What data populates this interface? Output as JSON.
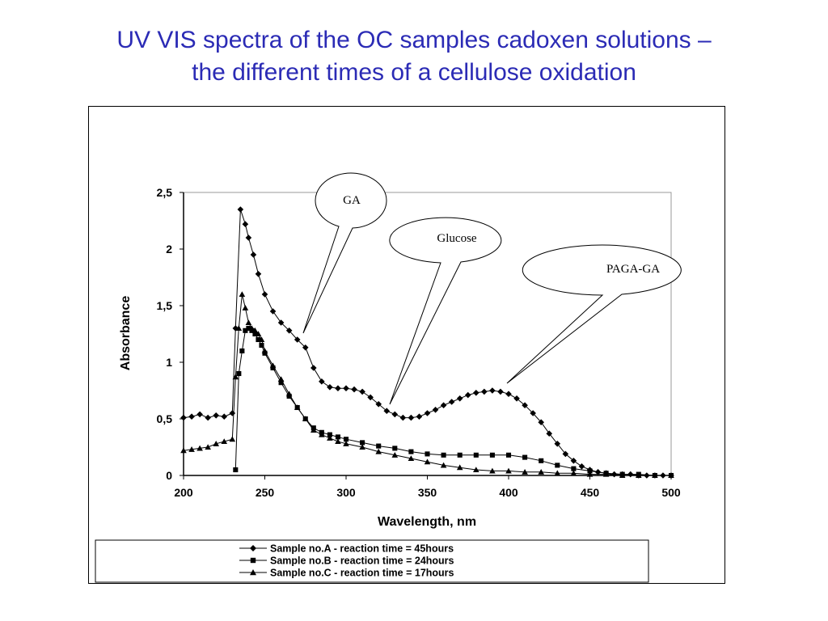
{
  "slide": {
    "title_line1": "UV VIS spectra of the OC samples cadoxen solutions –",
    "title_line2": "the different times of a cellulose oxidation"
  },
  "colors": {
    "title": "#2b2bb5",
    "series": "#000000",
    "plot_border": "#999999"
  },
  "chart_data": {
    "type": "line",
    "title": "",
    "xlabel": "Wavelength, nm",
    "ylabel": "Absorbance",
    "xlim": [
      200,
      500
    ],
    "ylim": [
      0,
      2.5
    ],
    "x_ticks": [
      "200",
      "250",
      "300",
      "350",
      "400",
      "450",
      "500"
    ],
    "y_ticks": [
      "0",
      "0,5",
      "1",
      "1,5",
      "2",
      "2,5"
    ],
    "grid": false,
    "legend_position": "bottom",
    "series": [
      {
        "name": "Sample no.A - reaction time = 45hours",
        "marker": "diamond",
        "x": [
          200,
          205,
          210,
          215,
          220,
          225,
          230,
          232,
          235,
          238,
          240,
          243,
          246,
          250,
          255,
          260,
          265,
          270,
          275,
          280,
          285,
          290,
          295,
          300,
          305,
          310,
          315,
          320,
          325,
          330,
          335,
          340,
          345,
          350,
          355,
          360,
          365,
          370,
          375,
          380,
          385,
          390,
          395,
          400,
          405,
          410,
          415,
          420,
          425,
          430,
          435,
          440,
          445,
          450,
          455,
          460,
          465,
          470,
          475,
          480,
          485,
          490,
          495,
          500
        ],
        "y": [
          0.51,
          0.52,
          0.54,
          0.51,
          0.53,
          0.52,
          0.55,
          1.3,
          2.35,
          2.22,
          2.1,
          1.95,
          1.78,
          1.6,
          1.45,
          1.35,
          1.28,
          1.2,
          1.13,
          0.95,
          0.83,
          0.78,
          0.77,
          0.77,
          0.76,
          0.74,
          0.69,
          0.63,
          0.57,
          0.54,
          0.51,
          0.51,
          0.52,
          0.55,
          0.58,
          0.62,
          0.65,
          0.68,
          0.71,
          0.73,
          0.74,
          0.75,
          0.74,
          0.72,
          0.68,
          0.62,
          0.55,
          0.47,
          0.37,
          0.28,
          0.19,
          0.13,
          0.08,
          0.05,
          0.03,
          0.02,
          0.01,
          0.01,
          0.01,
          0.0,
          0.0,
          0.0,
          0.0,
          0.0
        ]
      },
      {
        "name": "Sample no.B - reaction time = 24hours",
        "marker": "square",
        "x": [
          232,
          234,
          236,
          238,
          240,
          242,
          244,
          246,
          248,
          250,
          255,
          260,
          265,
          270,
          275,
          280,
          285,
          290,
          295,
          300,
          310,
          320,
          330,
          340,
          350,
          360,
          370,
          380,
          390,
          400,
          410,
          420,
          430,
          440,
          450,
          460,
          470,
          480,
          490,
          500
        ],
        "y": [
          0.05,
          0.9,
          1.1,
          1.28,
          1.3,
          1.28,
          1.25,
          1.2,
          1.15,
          1.08,
          0.95,
          0.82,
          0.7,
          0.6,
          0.5,
          0.42,
          0.38,
          0.36,
          0.34,
          0.32,
          0.29,
          0.26,
          0.24,
          0.21,
          0.19,
          0.18,
          0.18,
          0.18,
          0.18,
          0.18,
          0.16,
          0.13,
          0.09,
          0.06,
          0.04,
          0.02,
          0.01,
          0.01,
          0.0,
          0.0
        ]
      },
      {
        "name": "Sample no.C - reaction time = 17hours",
        "marker": "triangle",
        "x": [
          200,
          205,
          210,
          215,
          220,
          225,
          230,
          232,
          234,
          236,
          238,
          240,
          242,
          244,
          246,
          248,
          250,
          255,
          260,
          265,
          270,
          275,
          280,
          285,
          290,
          295,
          300,
          310,
          320,
          330,
          340,
          350,
          360,
          370,
          380,
          390,
          400,
          410,
          420,
          430,
          440,
          450,
          460,
          470,
          480,
          490,
          500
        ],
        "y": [
          0.22,
          0.23,
          0.24,
          0.25,
          0.28,
          0.3,
          0.32,
          0.87,
          1.3,
          1.6,
          1.48,
          1.35,
          1.3,
          1.28,
          1.25,
          1.2,
          1.1,
          0.97,
          0.85,
          0.72,
          0.6,
          0.5,
          0.4,
          0.36,
          0.33,
          0.3,
          0.28,
          0.25,
          0.21,
          0.18,
          0.15,
          0.12,
          0.09,
          0.07,
          0.05,
          0.04,
          0.04,
          0.03,
          0.03,
          0.02,
          0.02,
          0.01,
          0.01,
          0.0,
          0.0,
          0.0,
          0.0
        ]
      }
    ],
    "annotations": [
      {
        "text": "GA",
        "points_to": [
          272,
          1.2
        ]
      },
      {
        "text": "Glucose",
        "points_to": [
          327,
          0.65
        ]
      },
      {
        "text": "PAGA-GA",
        "points_to": [
          401,
          0.82
        ]
      }
    ]
  }
}
